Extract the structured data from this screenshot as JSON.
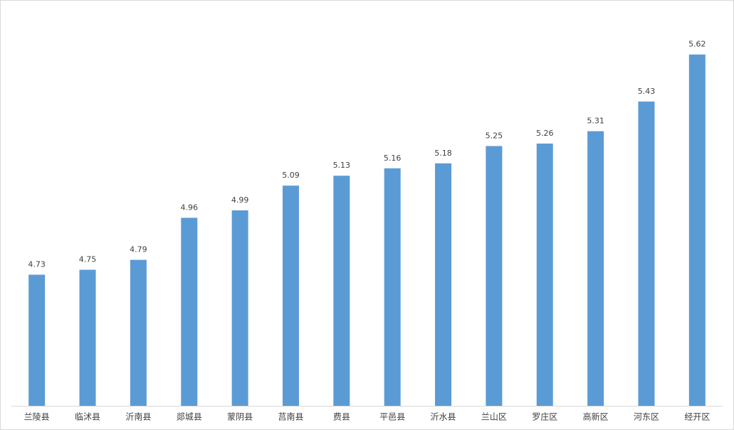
{
  "chart_data": {
    "type": "bar",
    "categories": [
      "兰陵县",
      "临沭县",
      "沂南县",
      "郯城县",
      "蒙阴县",
      "莒南县",
      "费县",
      "平邑县",
      "沂水县",
      "兰山区",
      "罗庄区",
      "高新区",
      "河东区",
      "经开区"
    ],
    "values": [
      4.73,
      4.75,
      4.79,
      4.96,
      4.99,
      5.09,
      5.13,
      5.16,
      5.18,
      5.25,
      5.26,
      5.31,
      5.43,
      5.62
    ],
    "color": "#5b9bd5",
    "ylim": [
      4.2,
      5.8
    ]
  }
}
